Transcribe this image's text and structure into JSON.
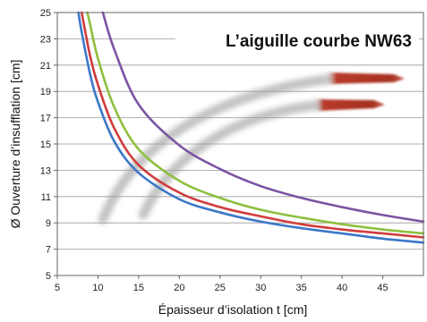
{
  "chart_data": {
    "type": "line",
    "title": "L’aiguille courbe NW63",
    "xlabel": "Épaisseur d’isolation t [cm]",
    "ylabel": "Ø Ouverture d’insufflation [cm]",
    "xlim": [
      5,
      50
    ],
    "ylim": [
      5,
      25
    ],
    "x_ticks": [
      5,
      10,
      15,
      20,
      25,
      30,
      35,
      40,
      45
    ],
    "y_ticks": [
      5,
      7,
      9,
      11,
      13,
      15,
      17,
      19,
      21,
      23,
      25
    ],
    "grid": "horizontal",
    "series": [
      {
        "color": "#3b77c8",
        "x": [
          7.6,
          8,
          9,
          10,
          12,
          15,
          20,
          25,
          30,
          35,
          40,
          45,
          50
        ],
        "y": [
          25,
          23.5,
          20.4,
          18.2,
          15.2,
          12.8,
          10.8,
          9.8,
          9.1,
          8.6,
          8.2,
          7.8,
          7.5
        ]
      },
      {
        "color": "#d13c3c",
        "x": [
          8.0,
          9,
          10,
          12,
          15,
          20,
          25,
          30,
          35,
          40,
          45,
          50
        ],
        "y": [
          25,
          21.8,
          19.5,
          16.2,
          13.4,
          11.3,
          10.2,
          9.5,
          8.9,
          8.5,
          8.2,
          7.9
        ]
      },
      {
        "color": "#8fbf3f",
        "x": [
          8.7,
          9,
          10,
          12,
          15,
          20,
          25,
          30,
          35,
          40,
          45,
          50
        ],
        "y": [
          25,
          24.2,
          21.5,
          17.8,
          14.6,
          12.2,
          10.9,
          10.0,
          9.4,
          8.9,
          8.5,
          8.2
        ]
      },
      {
        "color": "#7b54a3",
        "x": [
          10.6,
          12,
          15,
          20,
          25,
          30,
          35,
          40,
          45,
          50
        ],
        "y": [
          25,
          22.2,
          18.0,
          14.9,
          13.1,
          11.8,
          10.9,
          10.2,
          9.6,
          9.1
        ]
      }
    ]
  },
  "colors": {
    "grid": "#9a9a9a",
    "axis": "#666666",
    "needle_shadow": "#b0b0b0",
    "needle_tip": "#b83a2a"
  }
}
